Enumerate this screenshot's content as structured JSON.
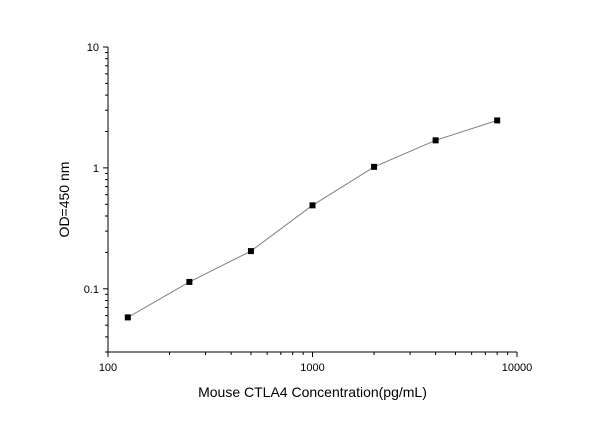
{
  "chart_data": {
    "type": "line",
    "title": "",
    "xlabel": "Mouse CTLA4 Concentration(pg/mL)",
    "ylabel": "OD=450 nm",
    "x_scale": "log",
    "y_scale": "log",
    "xlim": [
      100,
      10000
    ],
    "ylim": [
      0.03,
      10
    ],
    "x_ticks": [
      {
        "value": 100,
        "label": "100"
      },
      {
        "value": 1000,
        "label": "1000"
      },
      {
        "value": 10000,
        "label": "10000"
      }
    ],
    "y_ticks": [
      {
        "value": 0.1,
        "label": "0.1"
      },
      {
        "value": 1,
        "label": "1"
      },
      {
        "value": 10,
        "label": "10"
      }
    ],
    "grid": false,
    "legend": "none",
    "line_color": "#808080",
    "marker_color": "#000000",
    "marker": "square",
    "series": [
      {
        "x": [
          125,
          250,
          500,
          1000,
          2000,
          4000,
          8000
        ],
        "y": [
          0.058,
          0.114,
          0.205,
          0.49,
          1.02,
          1.69,
          2.47
        ]
      }
    ]
  }
}
